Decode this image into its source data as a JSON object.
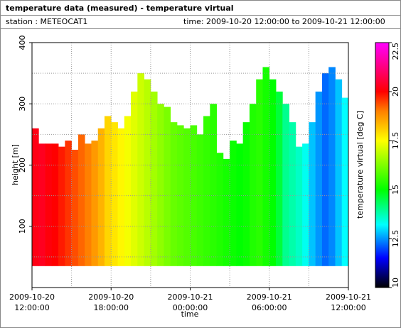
{
  "header": {
    "title": "temperature data (measured) - temperature virtual",
    "station": "station : METEOCAT1",
    "time_range": "time: 2009-10-20 12:00:00 to 2009-10-21 12:00:00"
  },
  "chart_data": {
    "type": "heatmap",
    "x_label": "time",
    "y_label": "height [m]",
    "colorbar_label": "temperature virtual [deg C]",
    "xlim": [
      "2009-10-20 12:00:00",
      "2009-10-21 12:00:00"
    ],
    "xticks": [
      "2009-10-20 12:00:00",
      "2009-10-20 18:00:00",
      "2009-10-21 00:00:00",
      "2009-10-21 06:00:00",
      "2009-10-21 12:00:00"
    ],
    "x_minor_ticks": [
      "2009-10-20 15:00:00",
      "2009-10-20 21:00:00",
      "2009-10-21 03:00:00",
      "2009-10-21 09:00:00"
    ],
    "ylim": [
      0,
      400
    ],
    "yticks": [
      100,
      200,
      300,
      400
    ],
    "y_minor_ticks": [
      50,
      150,
      250,
      350
    ],
    "zlim": [
      10,
      22.5
    ],
    "zticks": [
      10,
      12.5,
      15,
      17.5,
      20,
      22.5
    ],
    "colormap": [
      {
        "value": 10,
        "color": "#000000"
      },
      {
        "value": 11.5,
        "color": "#0000ff"
      },
      {
        "value": 13.2,
        "color": "#00ffff"
      },
      {
        "value": 15,
        "color": "#00ff00"
      },
      {
        "value": 17.5,
        "color": "#ffff00"
      },
      {
        "value": 19,
        "color": "#ff8000"
      },
      {
        "value": 20,
        "color": "#ff0000"
      },
      {
        "value": 22.5,
        "color": "#ff00ff"
      }
    ],
    "base_height": 35,
    "x": [
      "2009-10-20 12:00:00",
      "2009-10-20 12:30:00",
      "2009-10-20 13:00:00",
      "2009-10-20 13:30:00",
      "2009-10-20 14:00:00",
      "2009-10-20 14:30:00",
      "2009-10-20 15:00:00",
      "2009-10-20 15:30:00",
      "2009-10-20 16:00:00",
      "2009-10-20 16:30:00",
      "2009-10-20 17:00:00",
      "2009-10-20 17:30:00",
      "2009-10-20 18:00:00",
      "2009-10-20 18:30:00",
      "2009-10-20 19:00:00",
      "2009-10-20 19:30:00",
      "2009-10-20 20:00:00",
      "2009-10-20 20:30:00",
      "2009-10-20 21:00:00",
      "2009-10-20 21:30:00",
      "2009-10-20 22:00:00",
      "2009-10-20 22:30:00",
      "2009-10-20 23:00:00",
      "2009-10-20 23:30:00",
      "2009-10-21 00:00:00",
      "2009-10-21 00:30:00",
      "2009-10-21 01:00:00",
      "2009-10-21 01:30:00",
      "2009-10-21 02:00:00",
      "2009-10-21 02:30:00",
      "2009-10-21 03:00:00",
      "2009-10-21 03:30:00",
      "2009-10-21 04:00:00",
      "2009-10-21 04:30:00",
      "2009-10-21 05:00:00",
      "2009-10-21 05:30:00",
      "2009-10-21 06:00:00",
      "2009-10-21 06:30:00",
      "2009-10-21 07:00:00",
      "2009-10-21 07:30:00",
      "2009-10-21 08:00:00",
      "2009-10-21 08:30:00",
      "2009-10-21 09:00:00",
      "2009-10-21 09:30:00",
      "2009-10-21 10:00:00",
      "2009-10-21 10:30:00",
      "2009-10-21 11:00:00",
      "2009-10-21 11:30:00"
    ],
    "values": [
      20.2,
      20.3,
      20.1,
      20.0,
      19.8,
      19.6,
      19.4,
      19.2,
      19.0,
      18.7,
      18.4,
      18.0,
      17.8,
      17.6,
      17.4,
      17.2,
      17.0,
      16.8,
      16.6,
      16.4,
      16.2,
      16.0,
      15.9,
      15.8,
      15.7,
      15.6,
      15.5,
      15.4,
      15.3,
      15.2,
      15.1,
      15.0,
      15.1,
      15.3,
      15.4,
      15.2,
      15.0,
      14.6,
      14.0,
      13.8,
      13.6,
      13.3,
      12.8,
      12.5,
      12.2,
      12.4,
      12.8,
      13.2
    ],
    "tops": [
      260,
      235,
      235,
      235,
      230,
      240,
      225,
      250,
      235,
      240,
      260,
      280,
      270,
      260,
      280,
      320,
      350,
      340,
      320,
      300,
      295,
      270,
      265,
      260,
      265,
      250,
      280,
      300,
      220,
      210,
      240,
      235,
      270,
      300,
      340,
      360,
      340,
      320,
      300,
      270,
      230,
      235,
      270,
      320,
      350,
      360,
      340,
      310
    ]
  }
}
